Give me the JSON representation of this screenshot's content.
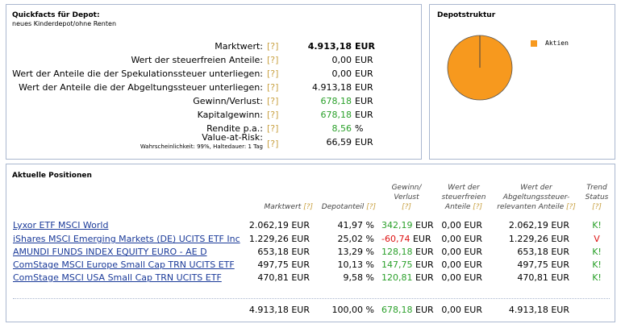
{
  "quickfacts": {
    "title": "Quickfacts für Depot:",
    "subtitle": "neues Kinderdepot/ohne Renten",
    "hint": "[?]",
    "rows": [
      {
        "label": "Marktwert:",
        "value": "4.913,18",
        "unit": "EUR",
        "style": "bold"
      },
      {
        "label": "Wert der steuerfreien Anteile:",
        "value": "0,00",
        "unit": "EUR",
        "style": ""
      },
      {
        "label": "Wert der Anteile die der Spekulationssteuer unterliegen:",
        "value": "0,00",
        "unit": "EUR",
        "style": ""
      },
      {
        "label": "Wert der Anteile die der Abgeltungssteuer unterliegen:",
        "value": "4.913,18",
        "unit": "EUR",
        "style": ""
      },
      {
        "label": "Gewinn/Verlust:",
        "value": "678,18",
        "unit": "EUR",
        "style": "green"
      },
      {
        "label": "Kapitalgewinn:",
        "value": "678,18",
        "unit": "EUR",
        "style": "green"
      },
      {
        "label": "Rendite p.a.:",
        "value": "8,56",
        "unit": "%",
        "style": "green"
      },
      {
        "label": "Value-at-Risk:",
        "value": "66,59",
        "unit": "EUR",
        "style": "",
        "note": "Wahrscheinlichkeit: 99%, Haltedauer: 1 Tag"
      }
    ]
  },
  "depotstruktur": {
    "title": "Depotstruktur",
    "chart_data": {
      "type": "pie",
      "categories": [
        "Aktien"
      ],
      "values": [
        100
      ],
      "colors": [
        "#f7991e"
      ],
      "legend": "right"
    }
  },
  "positions": {
    "title": "Aktuelle Positionen",
    "hint": "[?]",
    "headers": {
      "marktwert": "Marktwert",
      "depotanteil": "Depotanteil",
      "gewinn_1": "Gewinn/",
      "gewinn_2": "Verlust",
      "steuerfrei_1": "Wert der",
      "steuerfrei_2": "steuerfreien",
      "steuerfrei_3": "Anteile",
      "abgelt_1": "Wert der",
      "abgelt_2": "Abgeltungssteuer-",
      "abgelt_3": "relevanten Anteile",
      "trend_1": "Trend",
      "trend_2": "Status"
    },
    "rows": [
      {
        "name": "Lyxor ETF MSCI World",
        "marktwert": "2.062,19 EUR",
        "anteil": "41,97 %",
        "gewinn": "342,19",
        "gewinn_cls": "green",
        "steuerfrei": "0,00 EUR",
        "abgelt": "2.062,19 EUR",
        "trend": "K!",
        "trend_cls": "green"
      },
      {
        "name": "iShares MSCI Emerging Markets (DE) UCITS ETF Inc",
        "marktwert": "1.229,26 EUR",
        "anteil": "25,02 %",
        "gewinn": "-60,74",
        "gewinn_cls": "red",
        "steuerfrei": "0,00 EUR",
        "abgelt": "1.229,26 EUR",
        "trend": "V",
        "trend_cls": "red"
      },
      {
        "name": "AMUNDI FUNDS INDEX EQUITY EURO - AE D",
        "marktwert": "653,18 EUR",
        "anteil": "13,29 %",
        "gewinn": "128,18",
        "gewinn_cls": "green",
        "steuerfrei": "0,00 EUR",
        "abgelt": "653,18 EUR",
        "trend": "K!",
        "trend_cls": "green"
      },
      {
        "name": "ComStage MSCI Europe Small Cap TRN UCITS ETF",
        "marktwert": "497,75 EUR",
        "anteil": "10,13 %",
        "gewinn": "147,75",
        "gewinn_cls": "green",
        "steuerfrei": "0,00 EUR",
        "abgelt": "497,75 EUR",
        "trend": "K!",
        "trend_cls": "green"
      },
      {
        "name": "ComStage MSCI USA Small Cap TRN UCITS ETF",
        "marktwert": "470,81 EUR",
        "anteil": "9,58 %",
        "gewinn": "120,81",
        "gewinn_cls": "green",
        "steuerfrei": "0,00 EUR",
        "abgelt": "470,81 EUR",
        "trend": "K!",
        "trend_cls": "green"
      }
    ],
    "unit": "EUR",
    "total": {
      "marktwert": "4.913,18 EUR",
      "anteil": "100,00 %",
      "gewinn": "678,18",
      "steuerfrei": "0,00 EUR",
      "abgelt": "4.913,18 EUR"
    }
  }
}
